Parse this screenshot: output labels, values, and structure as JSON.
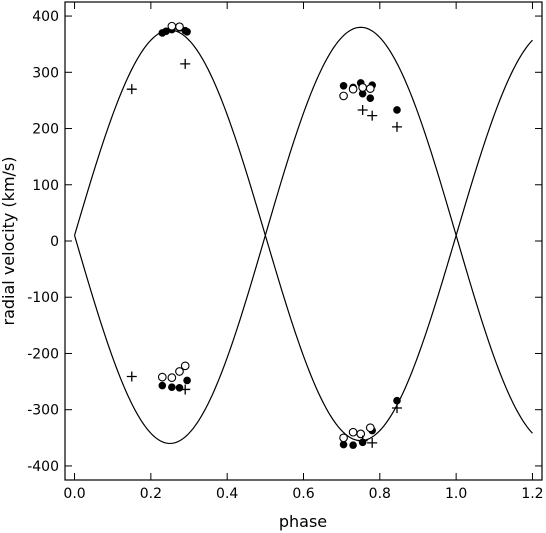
{
  "chart_data": {
    "type": "scatter",
    "xlabel": "phase",
    "ylabel": "radial velocity (km/s)",
    "xlim": [
      -0.025,
      1.225
    ],
    "ylim": [
      -425,
      425
    ],
    "x_ticks": [
      0.0,
      0.2,
      0.4,
      0.6,
      0.8,
      1.0,
      1.2
    ],
    "x_tick_labels": [
      "0.0",
      "0.2",
      "0.4",
      "0.6",
      "0.8",
      "1.0",
      "1.2"
    ],
    "y_ticks": [
      -400,
      -300,
      -200,
      -100,
      0,
      100,
      200,
      300,
      400
    ],
    "y_tick_labels": [
      "-400",
      "-300",
      "-200",
      "-100",
      "0",
      "100",
      "200",
      "300",
      "400"
    ],
    "grid": false,
    "curves": [
      {
        "gamma": 10,
        "amplitude": 365,
        "phase_of_max": 0.25,
        "x_range": [
          0.0,
          1.2
        ],
        "color": "#000000"
      },
      {
        "gamma": 10,
        "amplitude": -370,
        "phase_of_max": 0.25,
        "x_range": [
          0.0,
          1.2
        ],
        "color": "#000000"
      }
    ],
    "series": [
      {
        "marker": "filled-circle",
        "points": [
          [
            0.23,
            370
          ],
          [
            0.24,
            373
          ],
          [
            0.255,
            376
          ],
          [
            0.275,
            379
          ],
          [
            0.29,
            374
          ],
          [
            0.295,
            372
          ],
          [
            0.23,
            -257
          ],
          [
            0.255,
            -260
          ],
          [
            0.275,
            -261
          ],
          [
            0.295,
            -248
          ],
          [
            0.705,
            276
          ],
          [
            0.73,
            273
          ],
          [
            0.75,
            281
          ],
          [
            0.755,
            262
          ],
          [
            0.775,
            254
          ],
          [
            0.78,
            277
          ],
          [
            0.845,
            233
          ],
          [
            0.705,
            -362
          ],
          [
            0.73,
            -363
          ],
          [
            0.755,
            -358
          ],
          [
            0.78,
            -337
          ],
          [
            0.845,
            -284
          ]
        ]
      },
      {
        "marker": "open-circle",
        "points": [
          [
            0.255,
            382
          ],
          [
            0.275,
            381
          ],
          [
            0.23,
            -242
          ],
          [
            0.255,
            -243
          ],
          [
            0.275,
            -232
          ],
          [
            0.29,
            -222
          ],
          [
            0.705,
            258
          ],
          [
            0.73,
            270
          ],
          [
            0.755,
            273
          ],
          [
            0.775,
            271
          ],
          [
            0.705,
            -350
          ],
          [
            0.73,
            -340
          ],
          [
            0.75,
            -343
          ],
          [
            0.775,
            -332
          ]
        ]
      },
      {
        "marker": "plus",
        "points": [
          [
            0.15,
            270
          ],
          [
            0.29,
            315
          ],
          [
            0.15,
            -241
          ],
          [
            0.29,
            -264
          ],
          [
            0.755,
            233
          ],
          [
            0.78,
            223
          ],
          [
            0.845,
            203
          ],
          [
            0.755,
            -355
          ],
          [
            0.78,
            -359
          ],
          [
            0.845,
            -297
          ]
        ]
      }
    ]
  }
}
